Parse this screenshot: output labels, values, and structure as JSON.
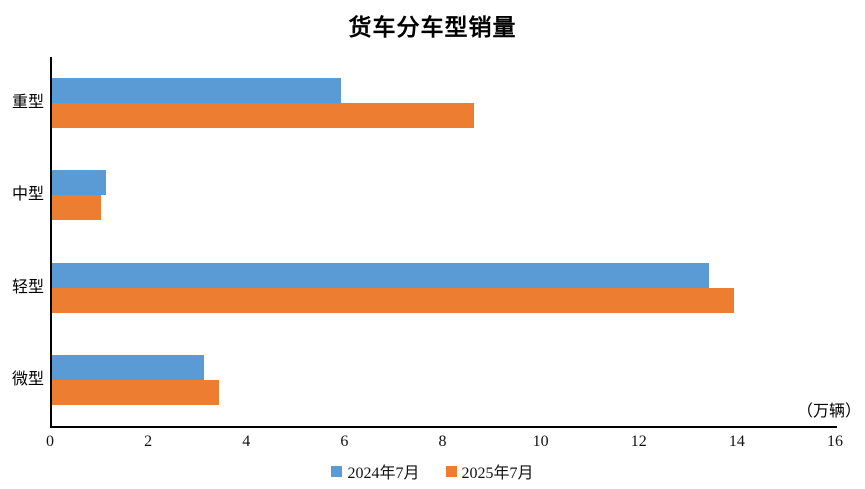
{
  "title": "货车分车型销量",
  "unit_label": "（万辆）",
  "colors": {
    "series_2024": "#5B9BD5",
    "series_2025": "#ED7D31",
    "axis": "#000000",
    "background": "#ffffff"
  },
  "legend": {
    "items": [
      {
        "label": "2024年7月",
        "color": "#5B9BD5"
      },
      {
        "label": "2025年7月",
        "color": "#ED7D31"
      }
    ],
    "position": "bottom"
  },
  "chart_data": {
    "type": "bar",
    "orientation": "horizontal",
    "title": "货车分车型销量",
    "categories": [
      "重型",
      "中型",
      "轻型",
      "微型"
    ],
    "series": [
      {
        "name": "2024年7月",
        "color": "#5B9BD5",
        "values": [
          5.9,
          1.1,
          13.4,
          3.1
        ]
      },
      {
        "name": "2025年7月",
        "color": "#ED7D31",
        "values": [
          8.6,
          1.0,
          13.9,
          3.4
        ]
      }
    ],
    "xlabel": "",
    "ylabel": "",
    "unit": "（万辆）",
    "xlim": [
      0,
      16
    ],
    "xticks": [
      0,
      2,
      4,
      6,
      8,
      10,
      12,
      14,
      16
    ],
    "grid": false,
    "legend_position": "bottom"
  }
}
